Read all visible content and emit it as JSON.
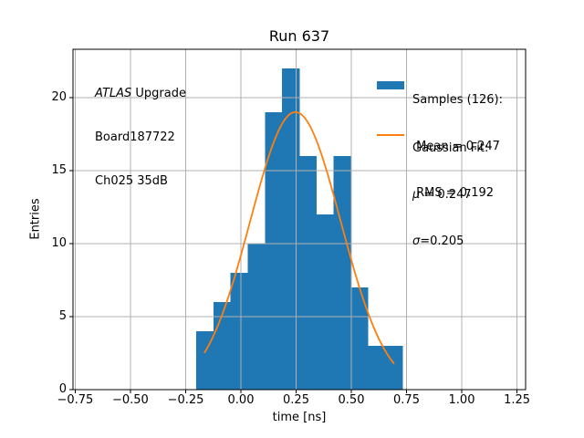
{
  "figure": {
    "background": "#ffffff"
  },
  "annotation": {
    "line1_italic": "ATLAS",
    "line1_rest": " Upgrade",
    "line2": "Board187722",
    "line3": "Ch025 35dB"
  },
  "legend": {
    "samples": {
      "swatch_color": "#1f77b4",
      "title": "Samples (126):",
      "mean": " Mean = 0.247",
      "rms": " RMS = 0.192"
    },
    "fit": {
      "swatch_color": "#ff7f0e",
      "title": "Gaussian Fit:",
      "mu_symbol": "μ",
      "mu_rest": " = 0.247",
      "sigma_symbol": "σ",
      "sigma_rest": "=0.205"
    }
  },
  "chart_data": {
    "type": "bar",
    "variant": "histogram-with-gaussian-fit",
    "title": "Run 637",
    "xlabel": "time [ns]",
    "ylabel": "Entries",
    "xlim": [
      -0.76,
      1.289
    ],
    "ylim": [
      0,
      23.3
    ],
    "xticks": [
      -0.75,
      -0.5,
      -0.25,
      0.0,
      0.25,
      0.5,
      0.75,
      1.0,
      1.25
    ],
    "xtick_labels": [
      "−0.75",
      "−0.50",
      "−0.25",
      "0.00",
      "0.25",
      "0.50",
      "0.75",
      "1.00",
      "1.25"
    ],
    "yticks": [
      0,
      5,
      10,
      15,
      20
    ],
    "ytick_labels": [
      "0",
      "5",
      "10",
      "15",
      "20"
    ],
    "grid": true,
    "grid_color": "#b0b0b0",
    "axis_color": "#000000",
    "bar_color": "#1f77b4",
    "total_samples": 126,
    "bin_edges": [
      -0.2025,
      -0.1247,
      -0.0469,
      0.0309,
      0.1087,
      0.1865,
      0.2643,
      0.3421,
      0.4199,
      0.4977,
      0.5755,
      0.6533,
      0.7311
    ],
    "counts": [
      4,
      6,
      8,
      10,
      19,
      22,
      16,
      12,
      16,
      7,
      3,
      3
    ],
    "fit": {
      "color": "#ff7f0e",
      "amplitude": 19.0,
      "mu": 0.247,
      "sigma": 0.205,
      "x_start": -0.164,
      "x_end": 0.692
    },
    "legend_position": "upper right"
  }
}
